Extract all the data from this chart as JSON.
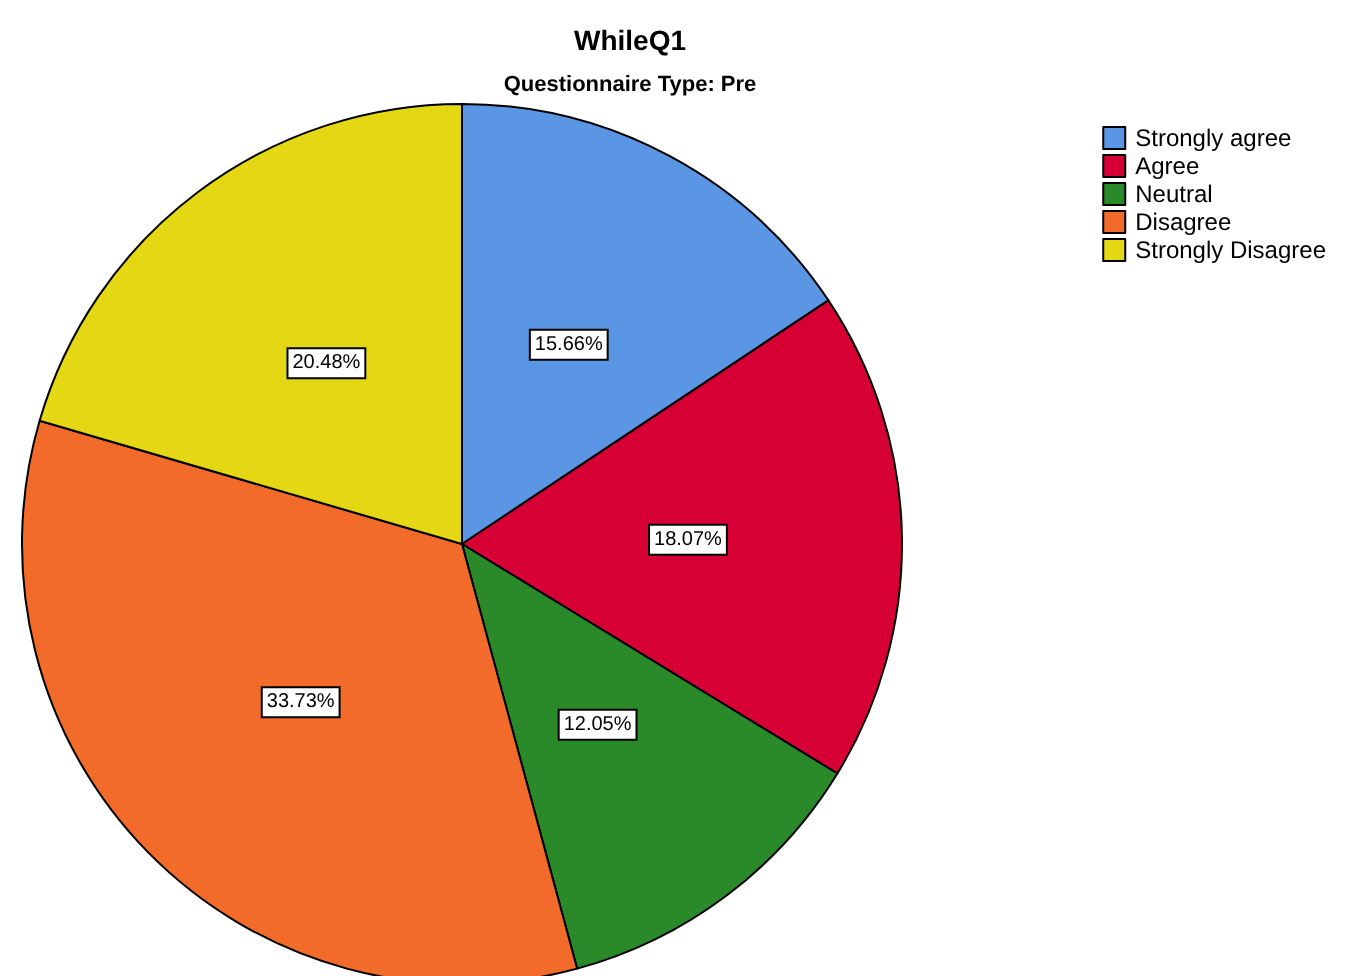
{
  "chart_data": {
    "type": "pie",
    "title": "WhileQ1",
    "subtitle": "Questionnaire Type: Pre",
    "categories": [
      "Strongly agree",
      "Agree",
      "Neutral",
      "Disagree",
      "Strongly Disagree"
    ],
    "values": [
      15.66,
      18.07,
      12.05,
      33.73,
      20.48
    ],
    "colors": [
      "#5a96e3",
      "#d70035",
      "#2a8a2a",
      "#f26b2a",
      "#e3d813"
    ],
    "value_labels": [
      "15.66%",
      "18.07%",
      "12.05%",
      "33.73%",
      "20.48%"
    ],
    "legend": "top right"
  }
}
